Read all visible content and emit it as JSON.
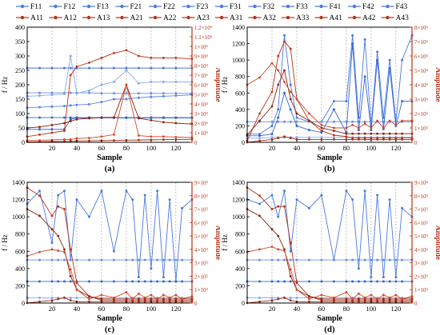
{
  "legend": {
    "frequency": [
      "F11",
      "F12",
      "F13",
      "F21",
      "F22",
      "F23",
      "F31",
      "F32",
      "F33",
      "F41",
      "F42",
      "F43"
    ],
    "amplitude": [
      "A11",
      "A12",
      "A13",
      "A21",
      "A22",
      "A23",
      "A31",
      "A32",
      "A33",
      "A41",
      "A42",
      "A43"
    ]
  },
  "colors": {
    "frequency": "#4a78e0",
    "amplitude": "#b83216",
    "grid": "#9a9a9a",
    "axis": "#000000"
  },
  "chart_data": [
    {
      "type": "line",
      "panel_label": "(a)",
      "xlabel": "Sample",
      "ylabel": "f / Hz",
      "y2label": "Amplitude",
      "xlim": [
        0,
        133
      ],
      "ylim": [
        0,
        400
      ],
      "y2lim": [
        0,
        1200000
      ],
      "xticks": [
        20,
        40,
        60,
        80,
        100,
        120
      ],
      "yticks": [
        0,
        50,
        100,
        150,
        200,
        250,
        300,
        350,
        400
      ],
      "y2ticks": [
        0,
        100000,
        200000,
        300000,
        400000,
        500000,
        600000,
        700000,
        800000,
        900000,
        1000000,
        1100000,
        1200000
      ],
      "y2tick_labels": [
        "0",
        "1×10⁵",
        "2×10⁵",
        "3×10⁵",
        "4×10⁵",
        "5×10⁵",
        "6×10⁵",
        "7×10⁵",
        "8×10⁵",
        "9×10⁵",
        "1×10⁶",
        "1.1×10⁶",
        "1.2×10⁶"
      ],
      "vlines": [
        20,
        40,
        60,
        80,
        100,
        120
      ],
      "x": [
        0,
        10,
        20,
        30,
        35,
        40,
        50,
        60,
        70,
        80,
        90,
        100,
        110,
        120,
        133
      ],
      "frequency_series": [
        [
          258,
          258,
          258,
          258,
          258,
          258,
          258,
          258,
          258,
          258,
          258,
          258,
          258,
          258,
          258
        ],
        [
          172,
          172,
          172,
          172,
          172,
          172,
          172,
          170,
          170,
          170,
          170,
          170,
          170,
          170,
          170
        ],
        [
          86,
          86,
          86,
          86,
          86,
          86,
          86,
          86,
          86,
          86,
          86,
          86,
          86,
          86,
          86
        ],
        [
          160,
          162,
          165,
          168,
          300,
          170,
          180,
          200,
          210,
          250,
          205,
          210,
          210,
          210,
          210
        ],
        [
          120,
          122,
          124,
          126,
          128,
          130,
          132,
          140,
          150,
          150,
          155,
          158,
          160,
          162,
          165
        ],
        [
          45,
          45,
          45,
          45,
          80,
          85,
          85,
          85,
          85,
          85,
          85,
          85,
          85,
          85,
          85
        ]
      ],
      "amplitude_series": [
        [
          60000,
          80000,
          100000,
          120000,
          700000,
          790000,
          830000,
          880000,
          930000,
          960000,
          900000,
          880000,
          880000,
          880000,
          870000
        ],
        [
          150000,
          160000,
          180000,
          200000,
          220000,
          240000,
          250000,
          260000,
          260000,
          600000,
          250000,
          230000,
          210000,
          200000,
          190000
        ],
        [
          20000,
          20000,
          25000,
          30000,
          30000,
          40000,
          45000,
          60000,
          80000,
          600000,
          70000,
          60000,
          60000,
          55000,
          50000
        ],
        [
          5000,
          6000,
          8000,
          10000,
          12000,
          14000,
          16000,
          18000,
          20000,
          22000,
          24000,
          26000,
          28000,
          30000,
          32000
        ]
      ]
    },
    {
      "type": "line",
      "panel_label": "(b)",
      "xlabel": "Sample",
      "ylabel": "f / Hz",
      "y2label": "Amplitude",
      "xlim": [
        0,
        133
      ],
      "ylim": [
        0,
        1400
      ],
      "y2lim": [
        0,
        800000
      ],
      "xticks": [
        20,
        40,
        60,
        80,
        100,
        120
      ],
      "yticks": [
        0,
        200,
        400,
        600,
        800,
        1000,
        1200,
        1400
      ],
      "y2ticks": [
        0,
        100000,
        200000,
        300000,
        400000,
        500000,
        600000,
        700000,
        800000
      ],
      "y2tick_labels": [
        "0",
        "1×10⁵",
        "2×10⁵",
        "3×10⁵",
        "4×10⁵",
        "5×10⁵",
        "6×10⁵",
        "7×10⁵",
        "8×10⁵"
      ],
      "vlines": [
        20,
        40,
        60,
        80,
        100,
        120
      ],
      "x": [
        0,
        10,
        20,
        25,
        30,
        35,
        40,
        50,
        60,
        70,
        80,
        85,
        90,
        95,
        100,
        105,
        110,
        115,
        120,
        125,
        133
      ],
      "frequency_series": [
        [
          100,
          100,
          200,
          400,
          1300,
          700,
          300,
          250,
          250,
          500,
          500,
          1300,
          300,
          1250,
          200,
          1100,
          300,
          1000,
          250,
          1000,
          1300
        ],
        [
          250,
          250,
          250,
          250,
          250,
          250,
          250,
          250,
          250,
          250,
          250,
          250,
          250,
          250,
          250,
          250,
          250,
          250,
          250,
          250,
          250
        ],
        [
          80,
          80,
          100,
          300,
          600,
          400,
          200,
          150,
          120,
          400,
          120,
          1200,
          150,
          800,
          150,
          1000,
          160,
          900,
          200,
          500,
          500
        ],
        [
          50,
          50,
          60,
          60,
          60,
          60,
          60,
          60,
          60,
          60,
          60,
          60,
          60,
          60,
          60,
          60,
          60,
          60,
          60,
          60,
          60
        ]
      ],
      "amplitude_series": [
        [
          10000,
          200000,
          350000,
          600000,
          700000,
          650000,
          300000,
          150000,
          80000,
          50000,
          40000,
          30000,
          30000,
          30000,
          30000,
          30000,
          30000,
          30000,
          30000,
          30000,
          30000
        ],
        [
          50000,
          150000,
          250000,
          400000,
          500000,
          300000,
          200000,
          150000,
          100000,
          80000,
          60000,
          60000,
          60000,
          60000,
          60000,
          60000,
          60000,
          60000,
          60000,
          60000,
          60000
        ],
        [
          400000,
          450000,
          550000,
          500000,
          420000,
          350000,
          300000,
          200000,
          120000,
          100000,
          100000,
          120000,
          100000,
          130000,
          100000,
          150000,
          100000,
          150000,
          120000,
          150000,
          150000
        ],
        [
          0,
          10000,
          20000,
          30000,
          40000,
          30000,
          20000,
          20000,
          20000,
          20000,
          20000,
          20000,
          20000,
          20000,
          20000,
          20000,
          20000,
          20000,
          20000,
          20000,
          20000
        ]
      ]
    },
    {
      "type": "line",
      "panel_label": "(c)",
      "xlabel": "Sample",
      "ylabel": "f / Hz",
      "y2label": "Amplitude",
      "xlim": [
        0,
        133
      ],
      "ylim": [
        0,
        1400
      ],
      "y2lim": [
        0,
        900000
      ],
      "xticks": [
        20,
        40,
        60,
        80,
        100,
        120
      ],
      "yticks": [
        0,
        200,
        400,
        600,
        800,
        1000,
        1200,
        1400
      ],
      "y2ticks": [
        0,
        100000,
        200000,
        300000,
        400000,
        500000,
        600000,
        700000,
        800000,
        900000
      ],
      "y2tick_labels": [
        "0",
        "1×10⁵",
        "2×10⁵",
        "3×10⁵",
        "4×10⁵",
        "5×10⁵",
        "6×10⁵",
        "7×10⁵",
        "8×10⁵",
        "9×10⁵"
      ],
      "vlines": [
        20,
        40,
        60,
        80,
        100,
        120
      ],
      "x": [
        0,
        10,
        20,
        25,
        30,
        35,
        40,
        50,
        60,
        70,
        80,
        85,
        90,
        95,
        100,
        105,
        110,
        115,
        120,
        125,
        133
      ],
      "frequency_series": [
        [
          1150,
          1300,
          700,
          1250,
          1300,
          500,
          1200,
          1000,
          1300,
          600,
          1300,
          1200,
          300,
          1250,
          400,
          1300,
          300,
          1200,
          250,
          1100,
          1200
        ],
        [
          500,
          500,
          500,
          500,
          500,
          500,
          500,
          500,
          500,
          500,
          500,
          500,
          500,
          500,
          500,
          500,
          500,
          500,
          500,
          500,
          500
        ],
        [
          250,
          250,
          250,
          250,
          250,
          250,
          250,
          250,
          250,
          250,
          250,
          250,
          250,
          250,
          250,
          250,
          250,
          250,
          250,
          250,
          250
        ],
        [
          60,
          60,
          60,
          60,
          60,
          60,
          60,
          60,
          60,
          60,
          60,
          60,
          60,
          60,
          60,
          60,
          60,
          60,
          60,
          60,
          60
        ]
      ],
      "amplitude_series": [
        [
          860000,
          800000,
          650000,
          720000,
          700000,
          400000,
          150000,
          50000,
          20000,
          20000,
          20000,
          20000,
          20000,
          20000,
          20000,
          20000,
          20000,
          20000,
          20000,
          20000,
          20000
        ],
        [
          700000,
          650000,
          550000,
          500000,
          400000,
          200000,
          100000,
          50000,
          30000,
          30000,
          30000,
          30000,
          30000,
          30000,
          30000,
          30000,
          30000,
          30000,
          30000,
          30000,
          30000
        ],
        [
          350000,
          380000,
          400000,
          390000,
          380000,
          250000,
          100000,
          30000,
          60000,
          40000,
          80000,
          30000,
          70000,
          40000,
          60000,
          30000,
          60000,
          40000,
          60000,
          30000,
          50000
        ],
        [
          0,
          10000,
          20000,
          30000,
          40000,
          20000,
          10000,
          10000,
          10000,
          10000,
          10000,
          10000,
          10000,
          10000,
          10000,
          10000,
          10000,
          10000,
          10000,
          10000,
          10000
        ]
      ]
    },
    {
      "type": "line",
      "panel_label": "(d)",
      "xlabel": "Sample",
      "ylabel": "f / Hz",
      "y2label": "Amplitude",
      "xlim": [
        0,
        133
      ],
      "ylim": [
        0,
        1400
      ],
      "y2lim": [
        0,
        900000
      ],
      "xticks": [
        20,
        40,
        60,
        80,
        100,
        120
      ],
      "yticks": [
        0,
        200,
        400,
        600,
        800,
        1000,
        1200,
        1400
      ],
      "y2ticks": [
        0,
        100000,
        200000,
        300000,
        400000,
        500000,
        600000,
        700000,
        800000,
        900000
      ],
      "y2tick_labels": [
        "0",
        "1×10⁵",
        "2×10⁵",
        "3×10⁵",
        "4×10⁵",
        "5×10⁵",
        "6×10⁵",
        "7×10⁵",
        "8×10⁵",
        "9×10⁵"
      ],
      "vlines": [
        20,
        40,
        60,
        80,
        100,
        120
      ],
      "x": [
        0,
        10,
        20,
        25,
        30,
        35,
        40,
        50,
        60,
        70,
        80,
        85,
        90,
        95,
        100,
        105,
        110,
        115,
        120,
        125,
        133
      ],
      "frequency_series": [
        [
          1200,
          1150,
          1250,
          1000,
          1300,
          600,
          1200,
          1100,
          1250,
          500,
          1300,
          1200,
          400,
          1300,
          300,
          1250,
          300,
          1200,
          300,
          1100,
          1000
        ],
        [
          500,
          500,
          500,
          500,
          500,
          500,
          500,
          500,
          500,
          500,
          500,
          500,
          500,
          500,
          500,
          500,
          500,
          500,
          500,
          500,
          500
        ],
        [
          250,
          250,
          250,
          250,
          250,
          250,
          250,
          250,
          250,
          250,
          250,
          250,
          250,
          250,
          250,
          250,
          250,
          250,
          250,
          250,
          250
        ],
        [
          60,
          60,
          60,
          60,
          60,
          60,
          60,
          60,
          60,
          60,
          60,
          60,
          60,
          60,
          60,
          60,
          60,
          60,
          60,
          60,
          60
        ]
      ],
      "amplitude_series": [
        [
          860000,
          800000,
          700000,
          720000,
          720000,
          450000,
          150000,
          50000,
          20000,
          20000,
          20000,
          20000,
          20000,
          20000,
          20000,
          20000,
          20000,
          20000,
          20000,
          20000,
          20000
        ],
        [
          700000,
          650000,
          550000,
          500000,
          400000,
          200000,
          100000,
          50000,
          30000,
          30000,
          30000,
          30000,
          30000,
          30000,
          30000,
          30000,
          30000,
          30000,
          30000,
          30000,
          30000
        ],
        [
          380000,
          400000,
          420000,
          400000,
          390000,
          250000,
          100000,
          30000,
          60000,
          40000,
          80000,
          30000,
          70000,
          40000,
          60000,
          30000,
          60000,
          40000,
          60000,
          30000,
          50000
        ],
        [
          0,
          10000,
          20000,
          30000,
          40000,
          20000,
          10000,
          10000,
          10000,
          10000,
          10000,
          10000,
          10000,
          10000,
          10000,
          10000,
          10000,
          10000,
          10000,
          10000,
          10000
        ]
      ]
    }
  ]
}
